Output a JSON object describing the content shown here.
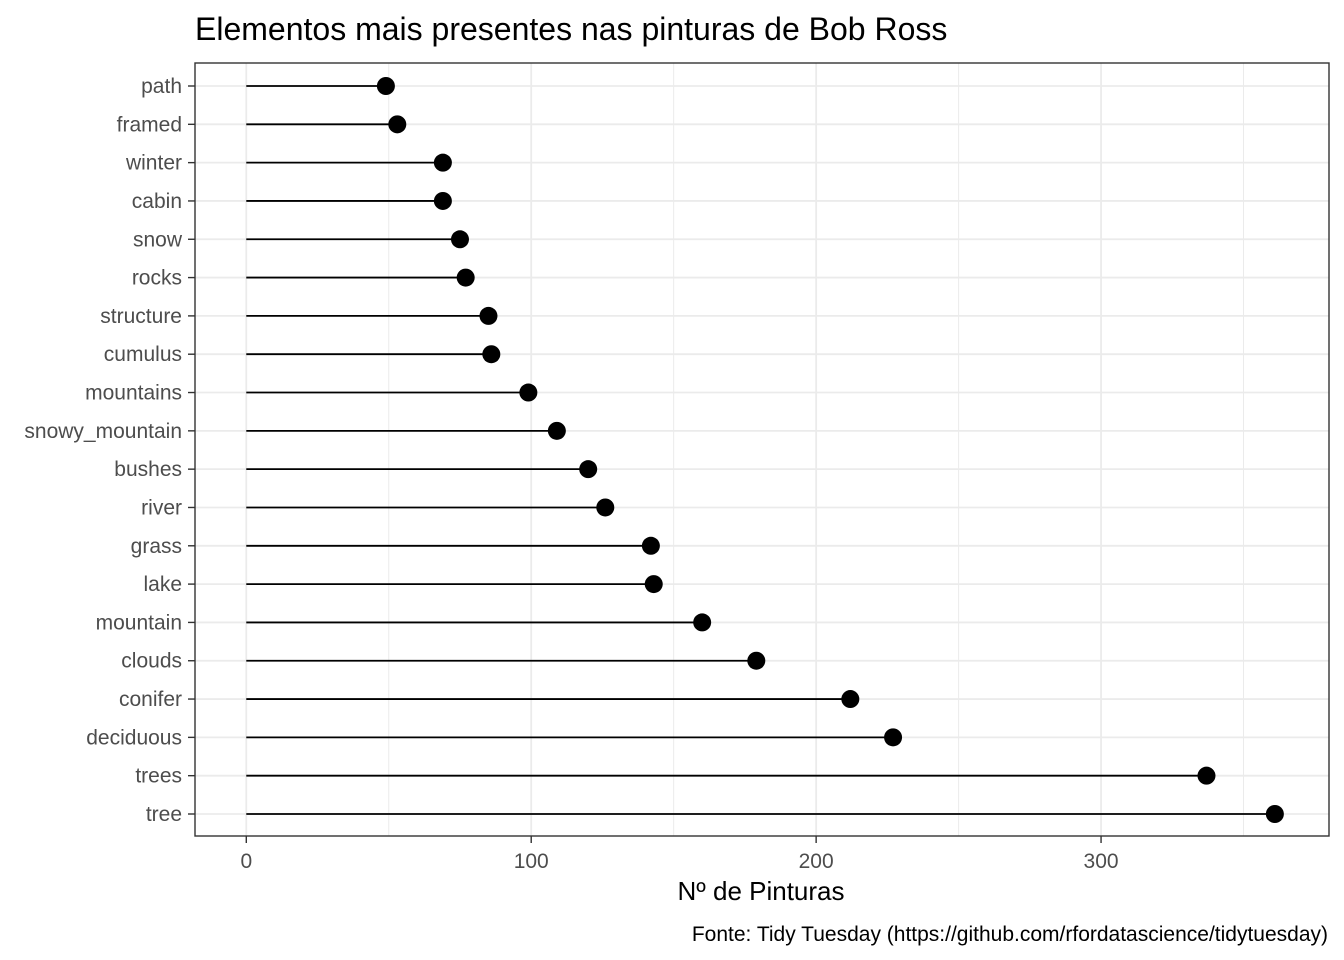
{
  "chart_data": {
    "type": "lollipop",
    "title": "Elementos mais presentes nas pinturas de Bob Ross",
    "xlabel": "Nº de Pinturas",
    "ylabel": "",
    "caption": "Fonte: Tidy Tuesday (https://github.com/rfordatascience/tidytuesday)",
    "xlim": [
      -18,
      380
    ],
    "x_ticks": [
      0,
      100,
      200,
      300
    ],
    "grid": true,
    "categories": [
      "path",
      "framed",
      "winter",
      "cabin",
      "snow",
      "rocks",
      "structure",
      "cumulus",
      "mountains",
      "snowy_mountain",
      "bushes",
      "river",
      "grass",
      "lake",
      "mountain",
      "clouds",
      "conifer",
      "deciduous",
      "trees",
      "tree"
    ],
    "values": [
      49,
      53,
      69,
      69,
      75,
      77,
      85,
      86,
      99,
      109,
      120,
      126,
      142,
      143,
      160,
      179,
      212,
      227,
      337,
      361
    ]
  }
}
